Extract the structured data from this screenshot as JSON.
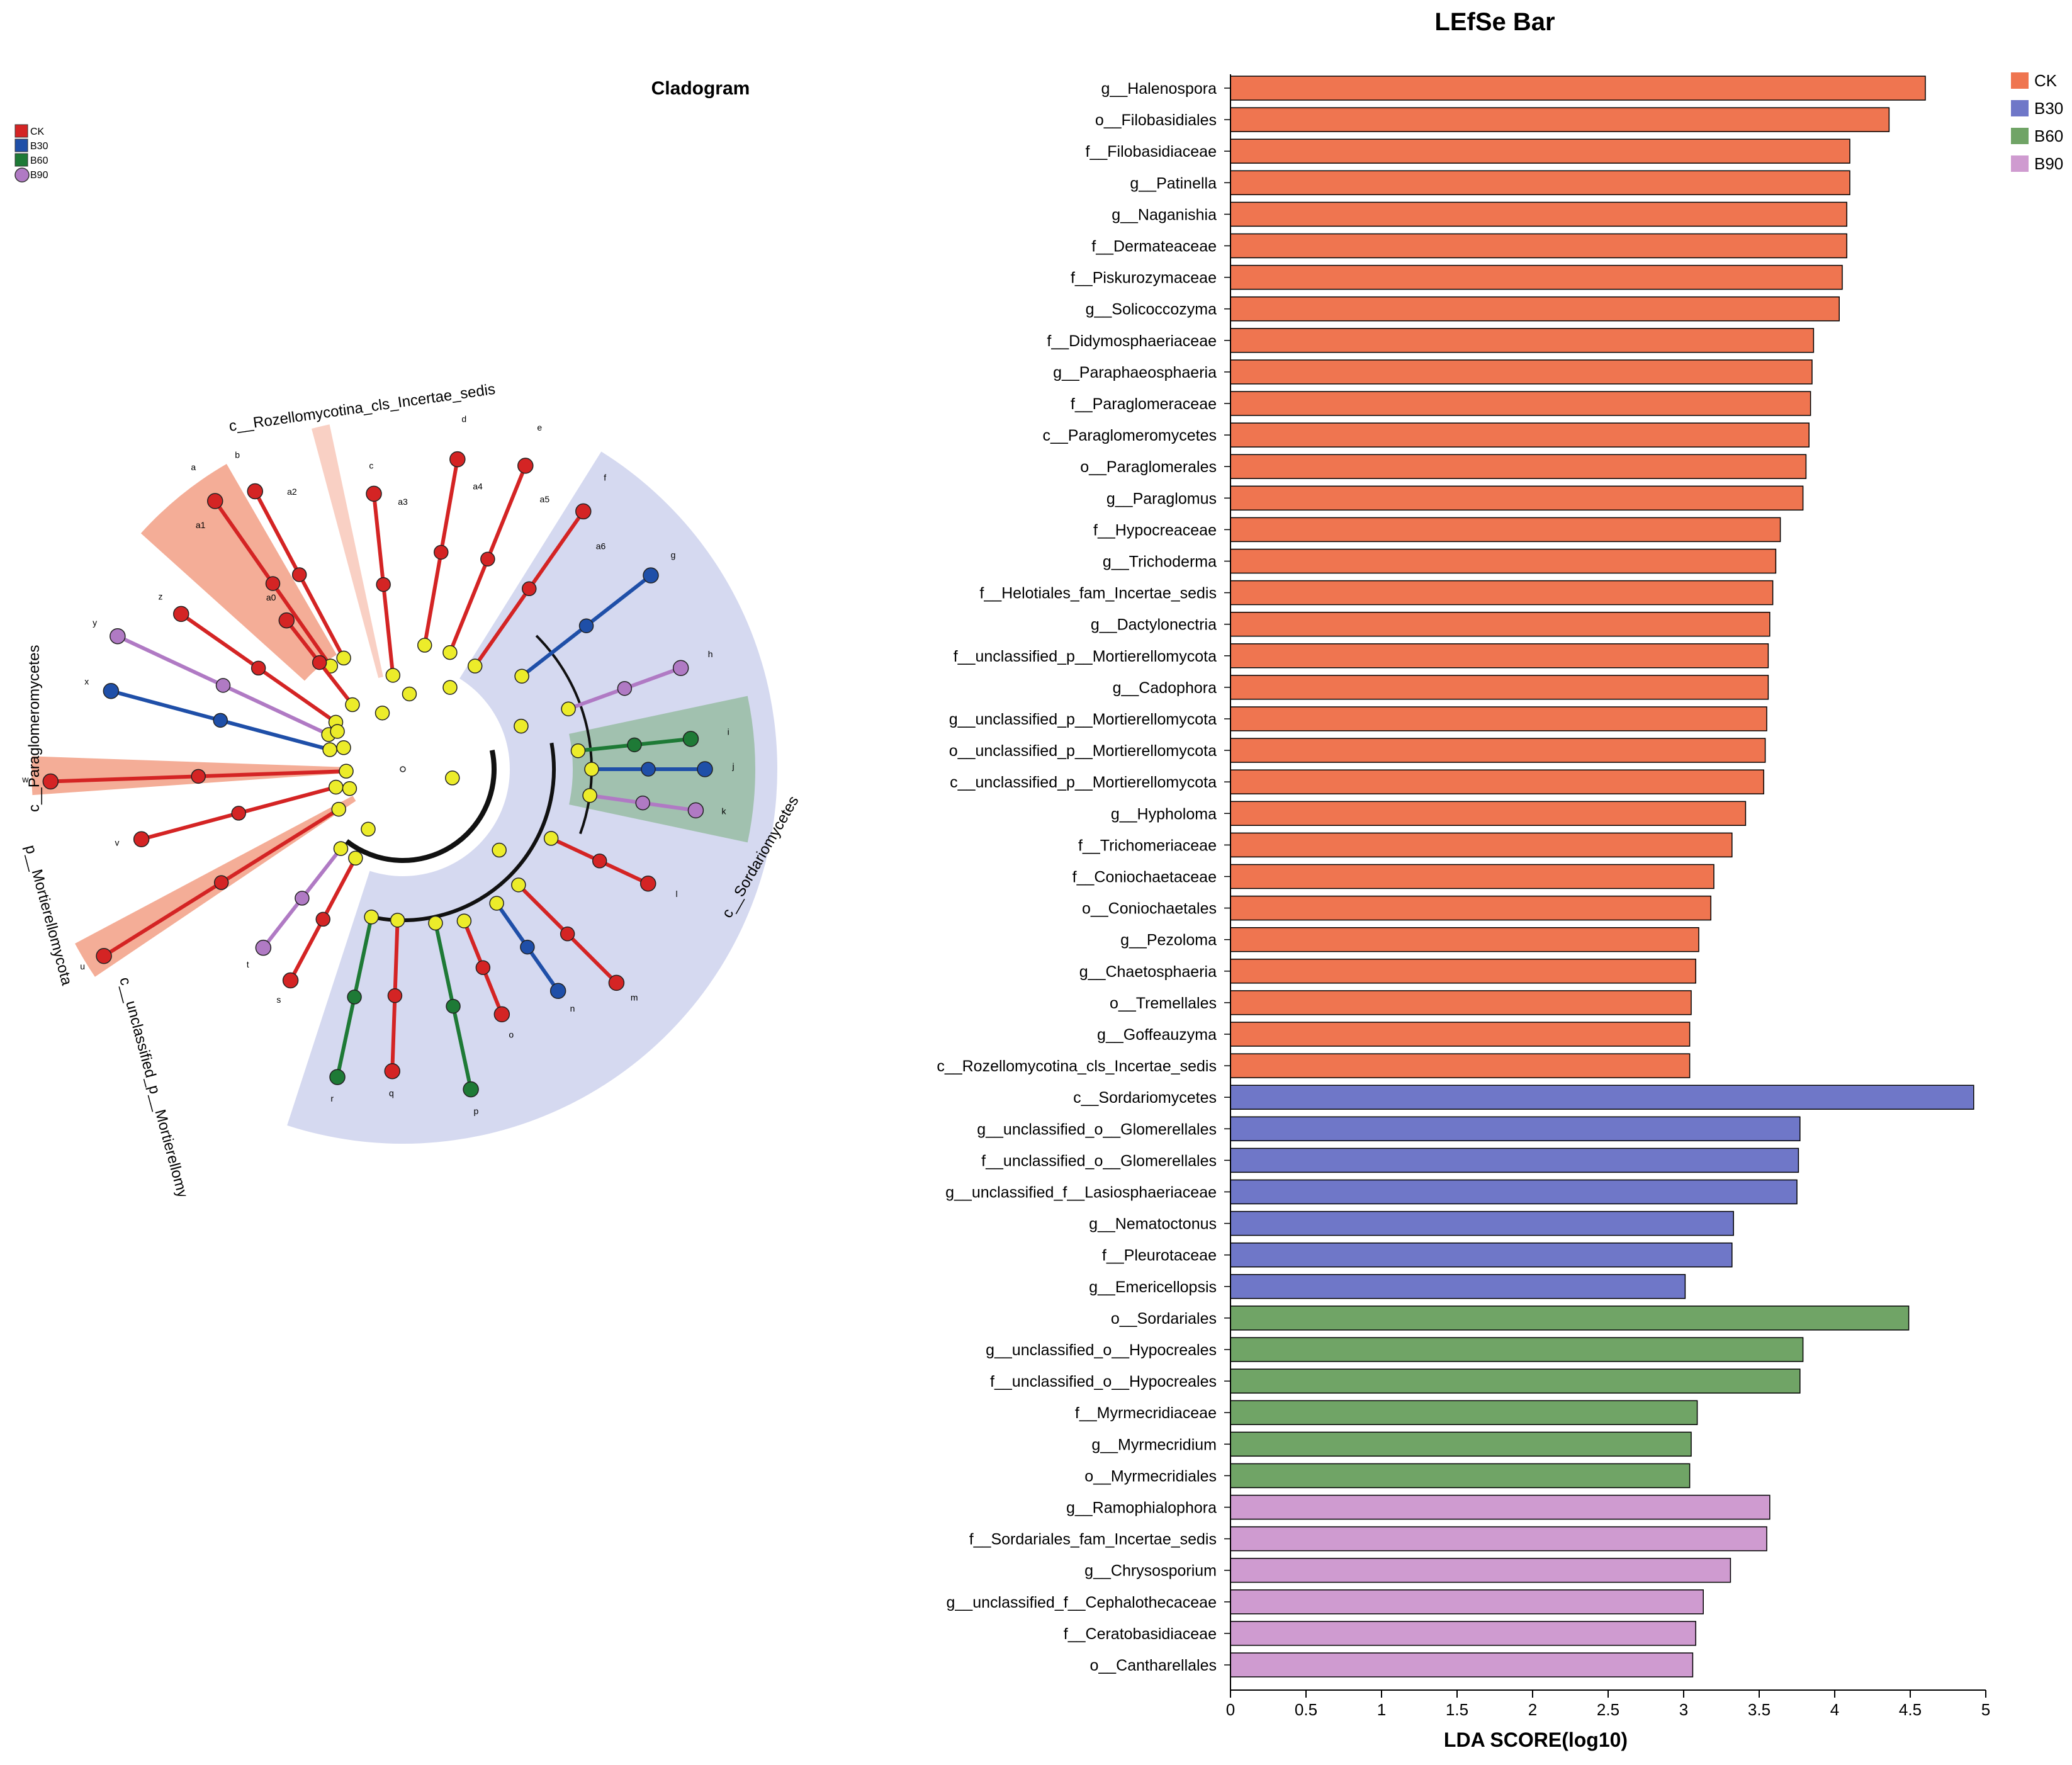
{
  "chart_data": [
    {
      "type": "cladogram",
      "title": "Cladogram",
      "legend": [
        {
          "label": "CK",
          "color": "#d42424"
        },
        {
          "label": "B30",
          "color": "#1f4fa8"
        },
        {
          "label": "B60",
          "color": "#1e7a36"
        },
        {
          "label": "B90",
          "color": "#b07ac4"
        }
      ],
      "clade_labels": [
        {
          "text": "c__Rozellomycotina_cls_Incertae_sedis",
          "group": "CK"
        },
        {
          "text": "c__Paraglomeromycetes",
          "group": "CK"
        },
        {
          "text": "p__Mortierellomycota",
          "group": "CK"
        },
        {
          "text": "c__unclassified_p__Mortierellomycota",
          "group": "CK"
        },
        {
          "text": "c__Sordariomycetes",
          "group": "B30"
        }
      ],
      "node_letters": [
        "a",
        "b",
        "c",
        "d",
        "e",
        "f",
        "g",
        "h",
        "i",
        "j",
        "k",
        "l",
        "m",
        "n",
        "o",
        "p",
        "q",
        "r",
        "s",
        "t",
        "u",
        "v",
        "w",
        "x",
        "y",
        "z",
        "a0",
        "a1",
        "a2",
        "a3",
        "a4",
        "a5",
        "a6"
      ]
    },
    {
      "type": "bar",
      "orientation": "horizontal",
      "title": "LEfSe Bar",
      "xlabel": "LDA SCORE(log10)",
      "ylabel": "",
      "xlim": [
        0,
        5
      ],
      "xticks": [
        0,
        0.5,
        1,
        1.5,
        2,
        2.5,
        3,
        3.5,
        4,
        4.5,
        5
      ],
      "legend_position": "top-right",
      "groups": [
        {
          "name": "CK",
          "color": "#ef7550"
        },
        {
          "name": "B30",
          "color": "#6f77c8"
        },
        {
          "name": "B60",
          "color": "#70a466"
        },
        {
          "name": "B90",
          "color": "#cf9bd0"
        }
      ],
      "bars": [
        {
          "label": "g__Halenospora",
          "value": 4.6,
          "group": "CK"
        },
        {
          "label": "o__Filobasidiales",
          "value": 4.36,
          "group": "CK"
        },
        {
          "label": "f__Filobasidiaceae",
          "value": 4.1,
          "group": "CK"
        },
        {
          "label": "g__Patinella",
          "value": 4.1,
          "group": "CK"
        },
        {
          "label": "g__Naganishia",
          "value": 4.08,
          "group": "CK"
        },
        {
          "label": "f__Dermateaceae",
          "value": 4.08,
          "group": "CK"
        },
        {
          "label": "f__Piskurozymaceae",
          "value": 4.05,
          "group": "CK"
        },
        {
          "label": "g__Solicoccozyma",
          "value": 4.03,
          "group": "CK"
        },
        {
          "label": "f__Didymosphaeriaceae",
          "value": 3.86,
          "group": "CK"
        },
        {
          "label": "g__Paraphaeosphaeria",
          "value": 3.85,
          "group": "CK"
        },
        {
          "label": "f__Paraglomeraceae",
          "value": 3.84,
          "group": "CK"
        },
        {
          "label": "c__Paraglomeromycetes",
          "value": 3.83,
          "group": "CK"
        },
        {
          "label": "o__Paraglomerales",
          "value": 3.81,
          "group": "CK"
        },
        {
          "label": "g__Paraglomus",
          "value": 3.79,
          "group": "CK"
        },
        {
          "label": "f__Hypocreaceae",
          "value": 3.64,
          "group": "CK"
        },
        {
          "label": "g__Trichoderma",
          "value": 3.61,
          "group": "CK"
        },
        {
          "label": "f__Helotiales_fam_Incertae_sedis",
          "value": 3.59,
          "group": "CK"
        },
        {
          "label": "g__Dactylonectria",
          "value": 3.57,
          "group": "CK"
        },
        {
          "label": "f__unclassified_p__Mortierellomycota",
          "value": 3.56,
          "group": "CK"
        },
        {
          "label": "g__Cadophora",
          "value": 3.56,
          "group": "CK"
        },
        {
          "label": "g__unclassified_p__Mortierellomycota",
          "value": 3.55,
          "group": "CK"
        },
        {
          "label": "o__unclassified_p__Mortierellomycota",
          "value": 3.54,
          "group": "CK"
        },
        {
          "label": "c__unclassified_p__Mortierellomycota",
          "value": 3.53,
          "group": "CK"
        },
        {
          "label": "g__Hypholoma",
          "value": 3.41,
          "group": "CK"
        },
        {
          "label": "f__Trichomeriaceae",
          "value": 3.32,
          "group": "CK"
        },
        {
          "label": "f__Coniochaetaceae",
          "value": 3.2,
          "group": "CK"
        },
        {
          "label": "o__Coniochaetales",
          "value": 3.18,
          "group": "CK"
        },
        {
          "label": "g__Pezoloma",
          "value": 3.1,
          "group": "CK"
        },
        {
          "label": "g__Chaetosphaeria",
          "value": 3.08,
          "group": "CK"
        },
        {
          "label": "o__Tremellales",
          "value": 3.05,
          "group": "CK"
        },
        {
          "label": "g__Goffeauzyma",
          "value": 3.04,
          "group": "CK"
        },
        {
          "label": "c__Rozellomycotina_cls_Incertae_sedis",
          "value": 3.04,
          "group": "CK"
        },
        {
          "label": "c__Sordariomycetes",
          "value": 4.92,
          "group": "B30"
        },
        {
          "label": "g__unclassified_o__Glomerellales",
          "value": 3.77,
          "group": "B30"
        },
        {
          "label": "f__unclassified_o__Glomerellales",
          "value": 3.76,
          "group": "B30"
        },
        {
          "label": "g__unclassified_f__Lasiosphaeriaceae",
          "value": 3.75,
          "group": "B30"
        },
        {
          "label": "g__Nematoctonus",
          "value": 3.33,
          "group": "B30"
        },
        {
          "label": "f__Pleurotaceae",
          "value": 3.32,
          "group": "B30"
        },
        {
          "label": "g__Emericellopsis",
          "value": 3.01,
          "group": "B30"
        },
        {
          "label": "o__Sordariales",
          "value": 4.49,
          "group": "B60"
        },
        {
          "label": "g__unclassified_o__Hypocreales",
          "value": 3.79,
          "group": "B60"
        },
        {
          "label": "f__unclassified_o__Hypocreales",
          "value": 3.77,
          "group": "B60"
        },
        {
          "label": "f__Myrmecridiaceae",
          "value": 3.09,
          "group": "B60"
        },
        {
          "label": "g__Myrmecridium",
          "value": 3.05,
          "group": "B60"
        },
        {
          "label": "o__Myrmecridiales",
          "value": 3.04,
          "group": "B60"
        },
        {
          "label": "g__Ramophialophora",
          "value": 3.57,
          "group": "B90"
        },
        {
          "label": "f__Sordariales_fam_Incertae_sedis",
          "value": 3.55,
          "group": "B90"
        },
        {
          "label": "g__Chrysosporium",
          "value": 3.31,
          "group": "B90"
        },
        {
          "label": "g__unclassified_f__Cephalothecaceae",
          "value": 3.13,
          "group": "B90"
        },
        {
          "label": "f__Ceratobasidiaceae",
          "value": 3.08,
          "group": "B90"
        },
        {
          "label": "o__Cantharellales",
          "value": 3.06,
          "group": "B90"
        }
      ]
    }
  ]
}
